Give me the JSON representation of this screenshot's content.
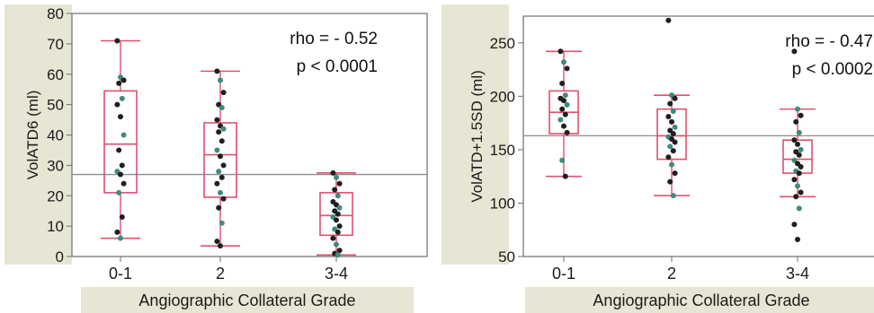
{
  "colors": {
    "band": "#e7e6d4",
    "box": "#e0506e",
    "point_dark": "#1f1f1f",
    "point_teal": "#3f8a80",
    "mean_line": "#8c8c8c",
    "frame": "#6e6e6e"
  },
  "chart_data": [
    {
      "type": "box",
      "ylabel": "VolATD6 (ml)",
      "xlabel": "Angiographic Collateral Grade",
      "categories": [
        "0-1",
        "2",
        "3-4"
      ],
      "ylim": [
        0,
        80
      ],
      "yticks": [
        0,
        10,
        20,
        30,
        40,
        50,
        60,
        70,
        80
      ],
      "reference_line": 27,
      "annotations": [
        "rho = - 0.52",
        "p < 0.0001"
      ],
      "boxes": [
        {
          "category": "0-1",
          "whisker_low": 6,
          "q1": 21,
          "median": 37,
          "q3": 54.5,
          "whisker_high": 71
        },
        {
          "category": "2",
          "whisker_low": 3.5,
          "q1": 19.5,
          "median": 33.5,
          "q3": 44,
          "whisker_high": 61
        },
        {
          "category": "3-4",
          "whisker_low": 0.5,
          "q1": 7,
          "median": 13.5,
          "q3": 21,
          "whisker_high": 27.5
        }
      ],
      "points": [
        {
          "category": "0-1",
          "values": [
            71,
            59,
            58,
            57,
            52,
            50,
            46,
            40,
            35,
            30,
            28,
            27,
            24,
            21,
            13,
            8,
            6
          ]
        },
        {
          "category": "2",
          "values": [
            61,
            58,
            54,
            50,
            49,
            45,
            43,
            42,
            41,
            38,
            35,
            33,
            30,
            28,
            26,
            24,
            21,
            19,
            16,
            11,
            5,
            3.5
          ]
        },
        {
          "category": "3-4",
          "values": [
            27.5,
            26,
            24,
            22,
            20,
            18,
            17,
            16,
            15,
            14,
            13,
            12,
            10,
            9,
            8,
            6,
            4,
            2,
            1,
            0.5
          ]
        }
      ]
    },
    {
      "type": "box",
      "ylabel": "VolATD+1.5SD (ml)",
      "xlabel": "Angiographic Collateral Grade",
      "categories": [
        "0-1",
        "2",
        "3-4"
      ],
      "ylim": [
        50,
        275
      ],
      "yticks": [
        50,
        100,
        150,
        200,
        250
      ],
      "reference_line": 163,
      "annotations": [
        "rho = - 0.47",
        "p < 0.0002"
      ],
      "boxes": [
        {
          "category": "0-1",
          "whisker_low": 125,
          "q1": 165,
          "median": 185,
          "q3": 205,
          "whisker_high": 242
        },
        {
          "category": "2",
          "whisker_low": 107,
          "q1": 141,
          "median": 163,
          "q3": 188,
          "whisker_high": 201
        },
        {
          "category": "3-4",
          "whisker_low": 106,
          "q1": 128,
          "median": 141,
          "q3": 159,
          "whisker_high": 188
        }
      ],
      "points": [
        {
          "category": "0-1",
          "values": [
            242,
            232,
            226,
            212,
            201,
            198,
            196,
            192,
            188,
            183,
            178,
            172,
            166,
            140,
            125
          ]
        },
        {
          "category": "2",
          "values": [
            271,
            201,
            198,
            193,
            186,
            181,
            176,
            171,
            168,
            165,
            162,
            160,
            157,
            153,
            149,
            143,
            136,
            128,
            120,
            107
          ]
        },
        {
          "category": "3-4",
          "values": [
            242,
            188,
            182,
            176,
            166,
            159,
            155,
            150,
            148,
            145,
            140,
            137,
            134,
            130,
            128,
            122,
            116,
            110,
            106,
            95,
            80,
            66
          ]
        }
      ]
    }
  ]
}
